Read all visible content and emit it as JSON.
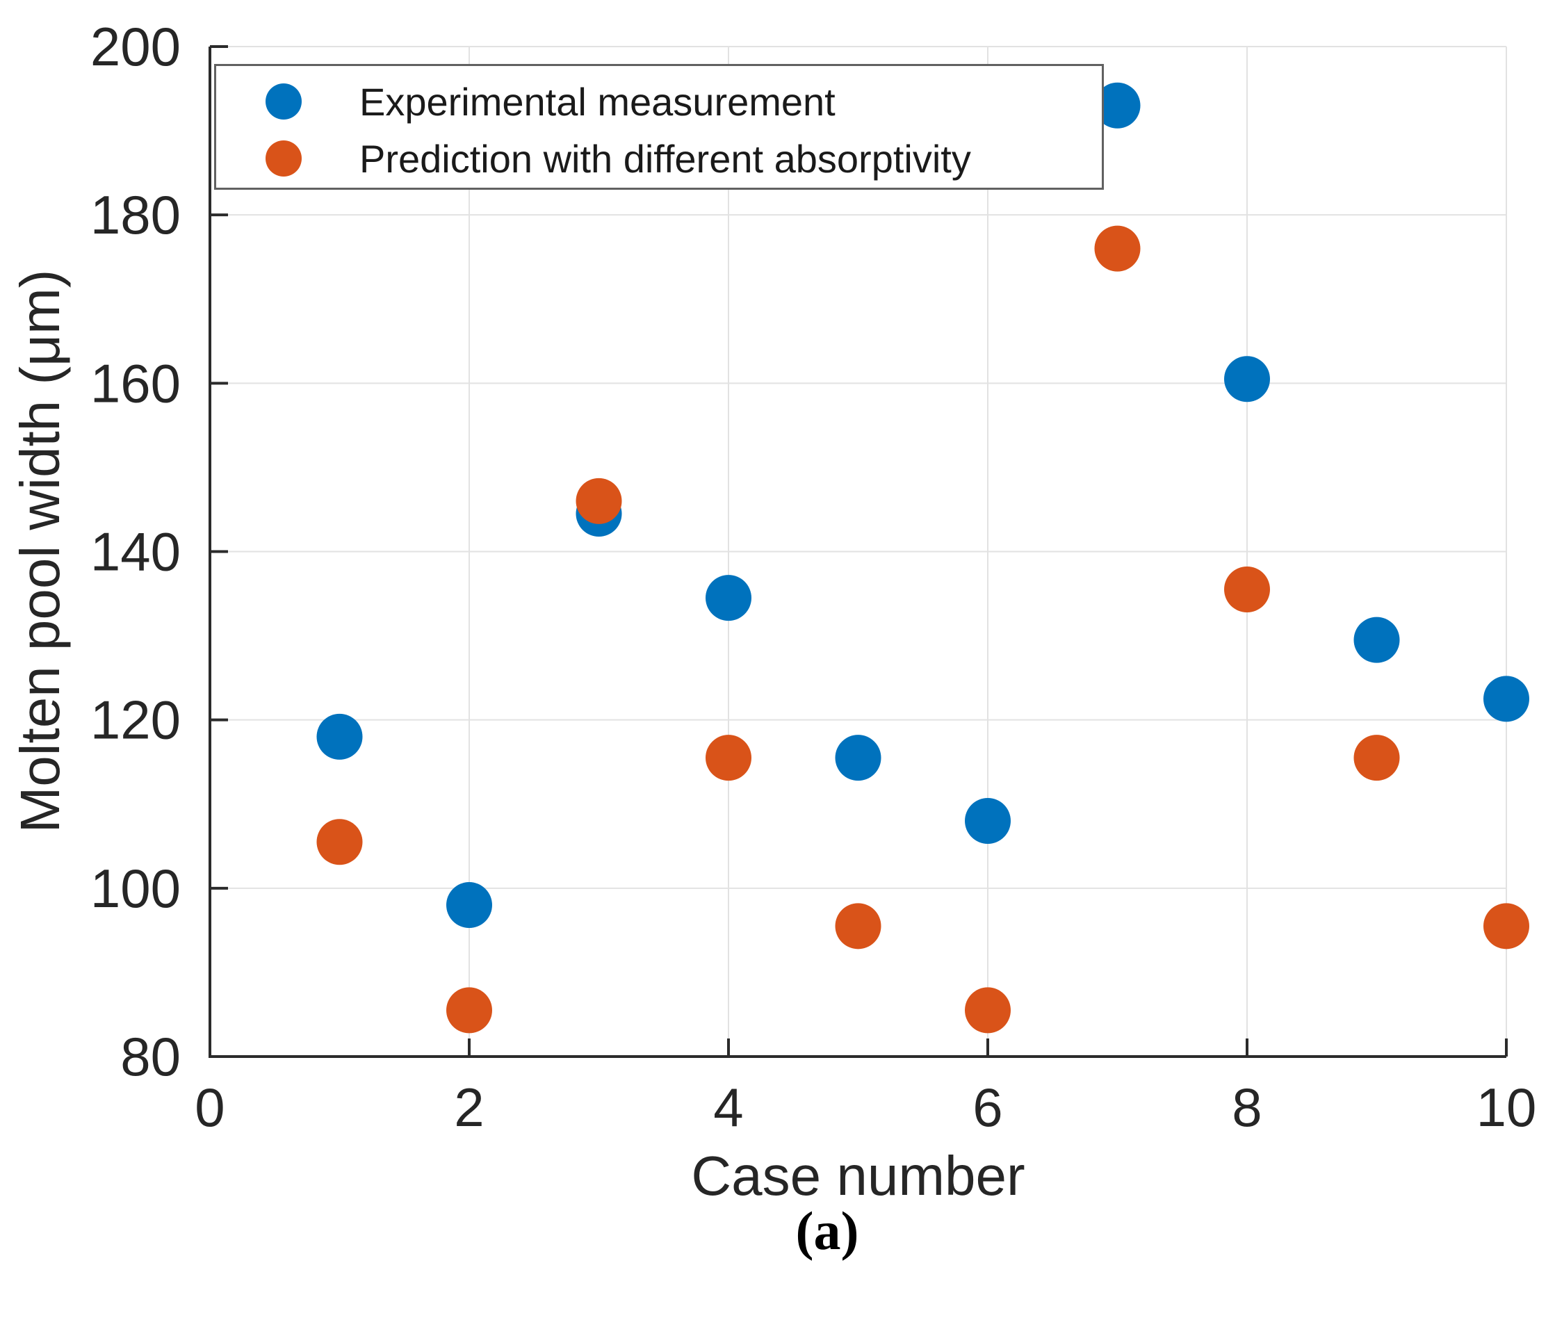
{
  "figure": {
    "caption": "(a)"
  },
  "chart_data": {
    "type": "scatter",
    "title": "",
    "xlabel": "Case number",
    "ylabel": "Molten pool width (μm)",
    "xlim": [
      0,
      10
    ],
    "ylim": [
      80,
      200
    ],
    "x_ticks": [
      0,
      2,
      4,
      6,
      8,
      10
    ],
    "y_ticks": [
      80,
      100,
      120,
      140,
      160,
      180,
      200
    ],
    "grid": true,
    "legend_position": "top-left",
    "x": [
      1,
      2,
      3,
      4,
      5,
      6,
      7,
      8,
      9,
      10
    ],
    "series": [
      {
        "name": "Experimental measurement",
        "color": "#0072BD",
        "values": [
          118,
          98,
          144.5,
          134.5,
          115.5,
          108,
          193,
          160.5,
          129.5,
          122.5
        ]
      },
      {
        "name": "Prediction with different absorptivity",
        "color": "#D95319",
        "values": [
          105.5,
          85.5,
          146,
          115.5,
          95.5,
          85.5,
          176,
          135.5,
          115.5,
          95.5
        ]
      }
    ],
    "style": {
      "spine_color": "#2b2b2b",
      "grid_color": "#e2e2e2",
      "tick_text_color": "#262626",
      "marker_radius": 33
    }
  }
}
